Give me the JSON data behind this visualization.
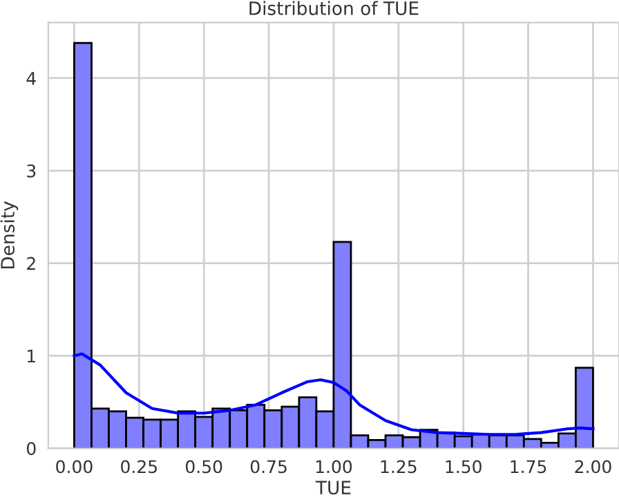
{
  "chart_data": {
    "type": "histogram",
    "title": "Distribution of TUE",
    "xlabel": "TUE",
    "ylabel": "Density",
    "xlim": [
      -0.1,
      2.1
    ],
    "ylim": [
      0,
      4.6
    ],
    "xticks": [
      {
        "value": 0,
        "label": "0.00"
      },
      {
        "value": 0.25,
        "label": "0.25"
      },
      {
        "value": 0.5,
        "label": "0.50"
      },
      {
        "value": 0.75,
        "label": "0.75"
      },
      {
        "value": 1,
        "label": "1.00"
      },
      {
        "value": 1.25,
        "label": "1.25"
      },
      {
        "value": 1.5,
        "label": "1.50"
      },
      {
        "value": 1.75,
        "label": "1.75"
      },
      {
        "value": 2,
        "label": "2.00"
      }
    ],
    "yticks": [
      0,
      1,
      2,
      3,
      4
    ],
    "grid": true,
    "series": [
      {
        "color": "#7f7fff",
        "bins": [
          0,
          0.0667,
          0.1333,
          0.2,
          0.2667,
          0.3333,
          0.4,
          0.4667,
          0.5333,
          0.6,
          0.6667,
          0.7333,
          0.8,
          0.8667,
          0.9333,
          1.0,
          1.0667,
          1.1333,
          1.2,
          1.2667,
          1.3333,
          1.4,
          1.4667,
          1.5333,
          1.6,
          1.6667,
          1.7333,
          1.8,
          1.8667,
          1.9333,
          2.0
        ],
        "values": [
          4.38,
          0.43,
          0.4,
          0.33,
          0.31,
          0.31,
          0.4,
          0.34,
          0.43,
          0.41,
          0.47,
          0.41,
          0.45,
          0.55,
          0.4,
          2.23,
          0.14,
          0.09,
          0.14,
          0.12,
          0.2,
          0.17,
          0.13,
          0.15,
          0.14,
          0.14,
          0.1,
          0.06,
          0.16,
          0.87
        ]
      },
      {
        "type": "line",
        "color": "#0000ff",
        "x": [
          0,
          0.03,
          0.1,
          0.2,
          0.3,
          0.4,
          0.5,
          0.6,
          0.7,
          0.8,
          0.9,
          0.95,
          1.0,
          1.05,
          1.1,
          1.2,
          1.3,
          1.4,
          1.5,
          1.6,
          1.7,
          1.8,
          1.9,
          1.95,
          2.0
        ],
        "values": [
          1.0,
          1.02,
          0.9,
          0.6,
          0.43,
          0.38,
          0.38,
          0.41,
          0.47,
          0.6,
          0.72,
          0.74,
          0.71,
          0.62,
          0.47,
          0.3,
          0.2,
          0.17,
          0.16,
          0.15,
          0.15,
          0.17,
          0.21,
          0.22,
          0.21
        ]
      }
    ]
  }
}
